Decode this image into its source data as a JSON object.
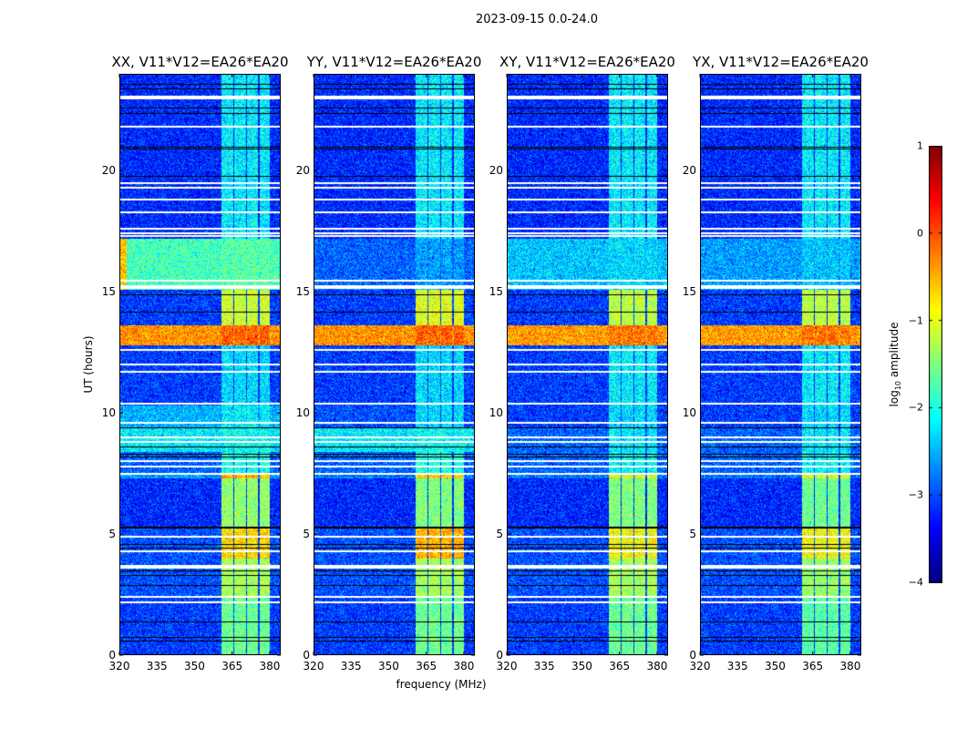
{
  "chart_data": {
    "type": "heatmap",
    "title": "2023-09-15 0.0-24.0",
    "xlabel": "frequency (MHz)",
    "ylabel": "UT (hours)",
    "xlim": [
      320,
      384.4
    ],
    "ylim": [
      0,
      24
    ],
    "xticks": [
      320,
      335,
      350,
      365,
      380
    ],
    "xtick_labels": [
      "320",
      "335",
      "350",
      "365",
      "380"
    ],
    "yticks": [
      0,
      5,
      10,
      15,
      20
    ],
    "ytick_labels": [
      "0",
      "5",
      "10",
      "15",
      "20"
    ],
    "colormap": "jet",
    "colorbar": {
      "label_main": "log",
      "label_sub": "10",
      "label_rest": " amplitude",
      "clim": [
        -4,
        1
      ],
      "ticks": [
        1,
        0,
        -1,
        -2,
        -3,
        -4
      ],
      "tick_labels": [
        "1",
        "0",
        "−1",
        "−2",
        "−3",
        "−4"
      ]
    },
    "panels": [
      {
        "title": "XX, V11*V12=EA26*EA20"
      },
      {
        "title": "YY, V11*V12=EA26*EA20"
      },
      {
        "title": "XY, V11*V12=EA26*EA20"
      },
      {
        "title": "YX, V11*V12=EA26*EA20"
      }
    ],
    "rfi_columns_mhz": [
      [
        360.8,
        365.4
      ],
      [
        366.0,
        370.4
      ],
      [
        371.0,
        375.4
      ],
      [
        376.0,
        380.0
      ]
    ],
    "time_segments": [
      {
        "t": [
          0.0,
          2.4
        ],
        "bg": [
          -3.1,
          -3.1,
          -3.1,
          -3.1
        ],
        "col": [
          -1.6,
          -1.6,
          -1.6,
          -1.7
        ]
      },
      {
        "t": [
          2.4,
          4.0
        ],
        "bg": [
          -3.0,
          -3.0,
          -3.0,
          -3.0
        ],
        "col": [
          -1.3,
          -1.3,
          -1.3,
          -1.4
        ]
      },
      {
        "t": [
          4.0,
          5.25
        ],
        "bg": [
          -3.0,
          -3.0,
          -3.0,
          -3.0
        ],
        "col": [
          -0.7,
          -0.5,
          -0.9,
          -0.9
        ]
      },
      {
        "t": [
          5.25,
          7.3
        ],
        "bg": [
          -3.2,
          -3.2,
          -3.2,
          -3.2
        ],
        "col": [
          -1.4,
          -1.5,
          -1.5,
          -1.6
        ]
      },
      {
        "t": [
          7.3,
          7.5
        ],
        "bg": [
          -2.6,
          -2.8,
          -2.8,
          -2.8
        ],
        "col": [
          -0.5,
          -0.7,
          -1.0,
          -1.0
        ]
      },
      {
        "t": [
          7.5,
          8.4
        ],
        "bg": [
          -2.9,
          -2.9,
          -2.9,
          -2.9
        ],
        "col": [
          -2.0,
          -2.0,
          -2.1,
          -2.1
        ]
      },
      {
        "t": [
          8.4,
          9.4
        ],
        "bg": [
          -2.2,
          -2.2,
          -2.9,
          -2.9
        ],
        "col": [
          -2.1,
          -2.1,
          -2.2,
          -2.2
        ]
      },
      {
        "t": [
          9.4,
          10.3
        ],
        "bg": [
          -2.5,
          -3.0,
          -3.1,
          -3.1
        ],
        "col": [
          -2.2,
          -2.3,
          -2.3,
          -2.3
        ]
      },
      {
        "t": [
          10.3,
          12.8
        ],
        "bg": [
          -3.1,
          -3.1,
          -3.1,
          -3.1
        ],
        "col": [
          -2.3,
          -2.3,
          -2.2,
          -2.2
        ]
      },
      {
        "t": [
          12.8,
          13.6
        ],
        "bg": [
          -0.35,
          -0.35,
          -0.4,
          -0.4
        ],
        "col": [
          -0.1,
          -0.1,
          -0.2,
          -0.2
        ]
      },
      {
        "t": [
          13.6,
          15.1
        ],
        "bg": [
          -3.1,
          -3.1,
          -3.1,
          -3.1
        ],
        "col": [
          -1.1,
          -1.0,
          -1.2,
          -1.2
        ]
      },
      {
        "t": [
          15.1,
          17.2
        ],
        "bg": [
          -1.8,
          -2.9,
          -2.4,
          -2.6
        ],
        "col": [
          -1.7,
          -2.6,
          -2.3,
          -2.4
        ]
      },
      {
        "t": [
          17.2,
          24.0
        ],
        "bg": [
          -3.2,
          -3.2,
          -3.2,
          -3.2
        ],
        "col": [
          -2.2,
          -2.2,
          -2.2,
          -2.2
        ]
      }
    ],
    "flagged_times_white": [
      2.2,
      2.4,
      3.6,
      3.7,
      4.3,
      4.9,
      7.5,
      7.8,
      8.0,
      8.8,
      9.0,
      9.6,
      10.4,
      11.7,
      12.0,
      12.6,
      15.15,
      15.25,
      15.45,
      17.3,
      17.4,
      17.6,
      18.3,
      18.8,
      19.3,
      19.5,
      21.8,
      23.0,
      23.05
    ],
    "gap_times_black": [
      0.6,
      0.75,
      1.4,
      2.9,
      3.3,
      3.5,
      4.45,
      4.6,
      5.25,
      5.3,
      8.2,
      8.3,
      8.6,
      9.4,
      14.2,
      14.9,
      19.8,
      20.9,
      21.0,
      22.4,
      22.6,
      23.4,
      23.6
    ]
  }
}
